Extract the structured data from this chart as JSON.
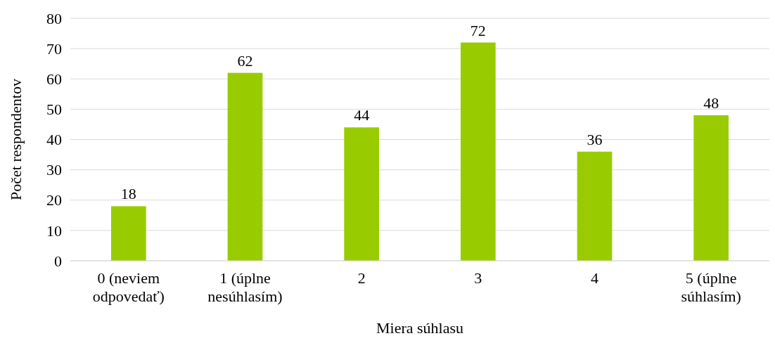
{
  "chart_data": {
    "type": "bar",
    "xlabel": "Miera súhlasu",
    "ylabel": "Počet respondentov",
    "categories": [
      "0 (neviem odpovedať)",
      "1 (úplne nesúhlasím)",
      "2",
      "3",
      "4",
      "5 (úplne súhlasím)"
    ],
    "values": [
      18,
      62,
      44,
      72,
      36,
      48
    ],
    "color": "#99cc00",
    "data_labels": true,
    "ylim": [
      0,
      80
    ],
    "yticks": [
      0,
      10,
      20,
      30,
      40,
      50,
      60,
      70,
      80
    ],
    "grid": "y"
  }
}
